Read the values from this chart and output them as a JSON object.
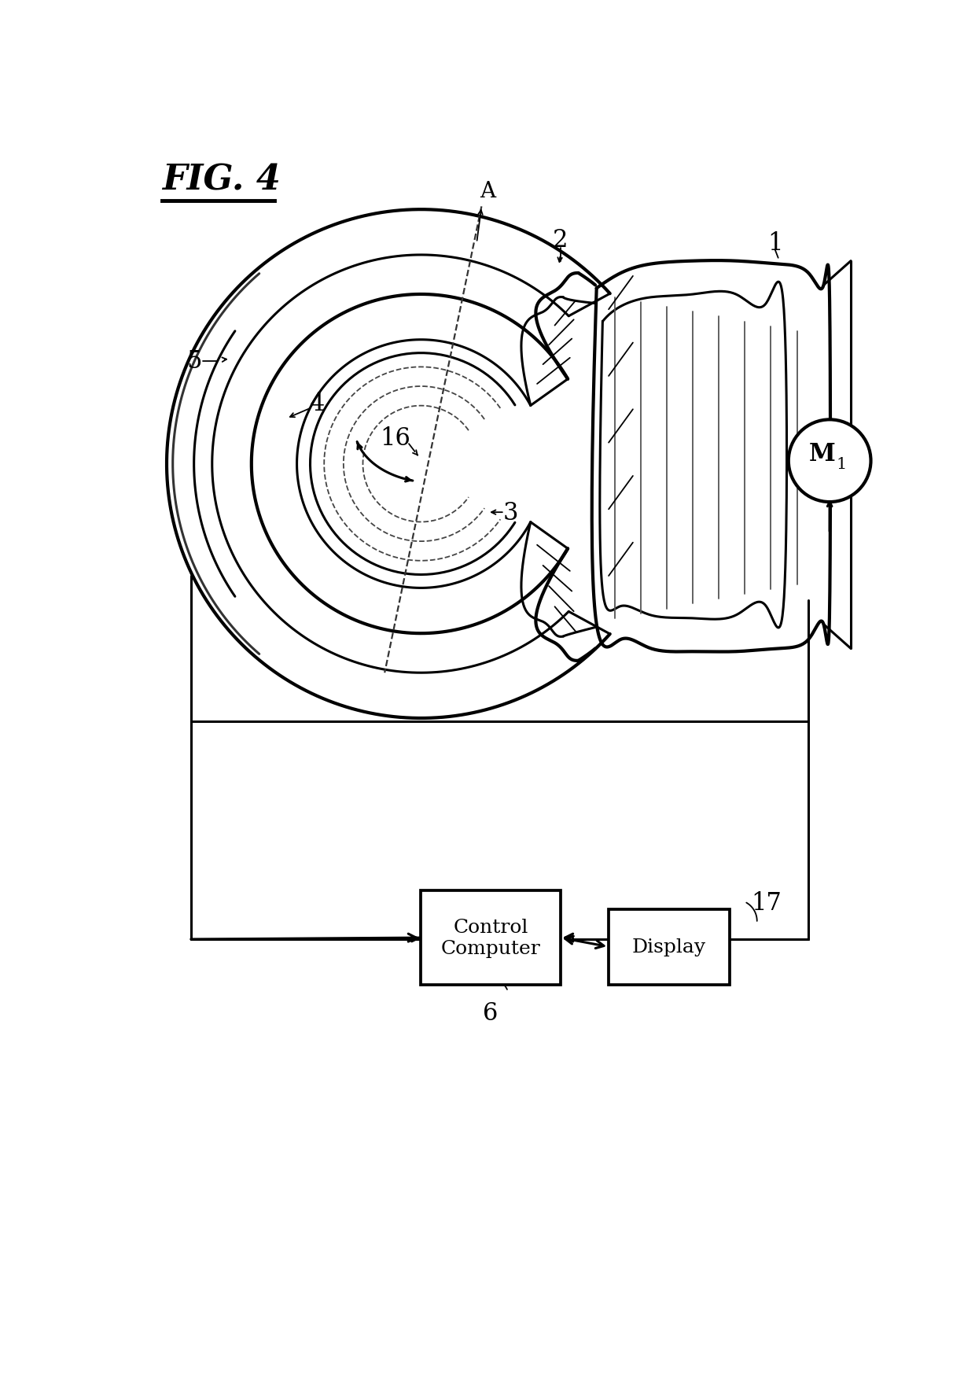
{
  "background_color": "#ffffff",
  "line_color": "#000000",
  "fig_title": "FIG. 4",
  "label_1": "1",
  "label_2": "2",
  "label_3": "3",
  "label_4": "4",
  "label_5": "5",
  "label_6": "6",
  "label_16": "16",
  "label_A": "A",
  "label_17": "17",
  "label_control": "Control\nComputer",
  "label_display": "Display",
  "label_M": "M",
  "label_M_sub": "1"
}
